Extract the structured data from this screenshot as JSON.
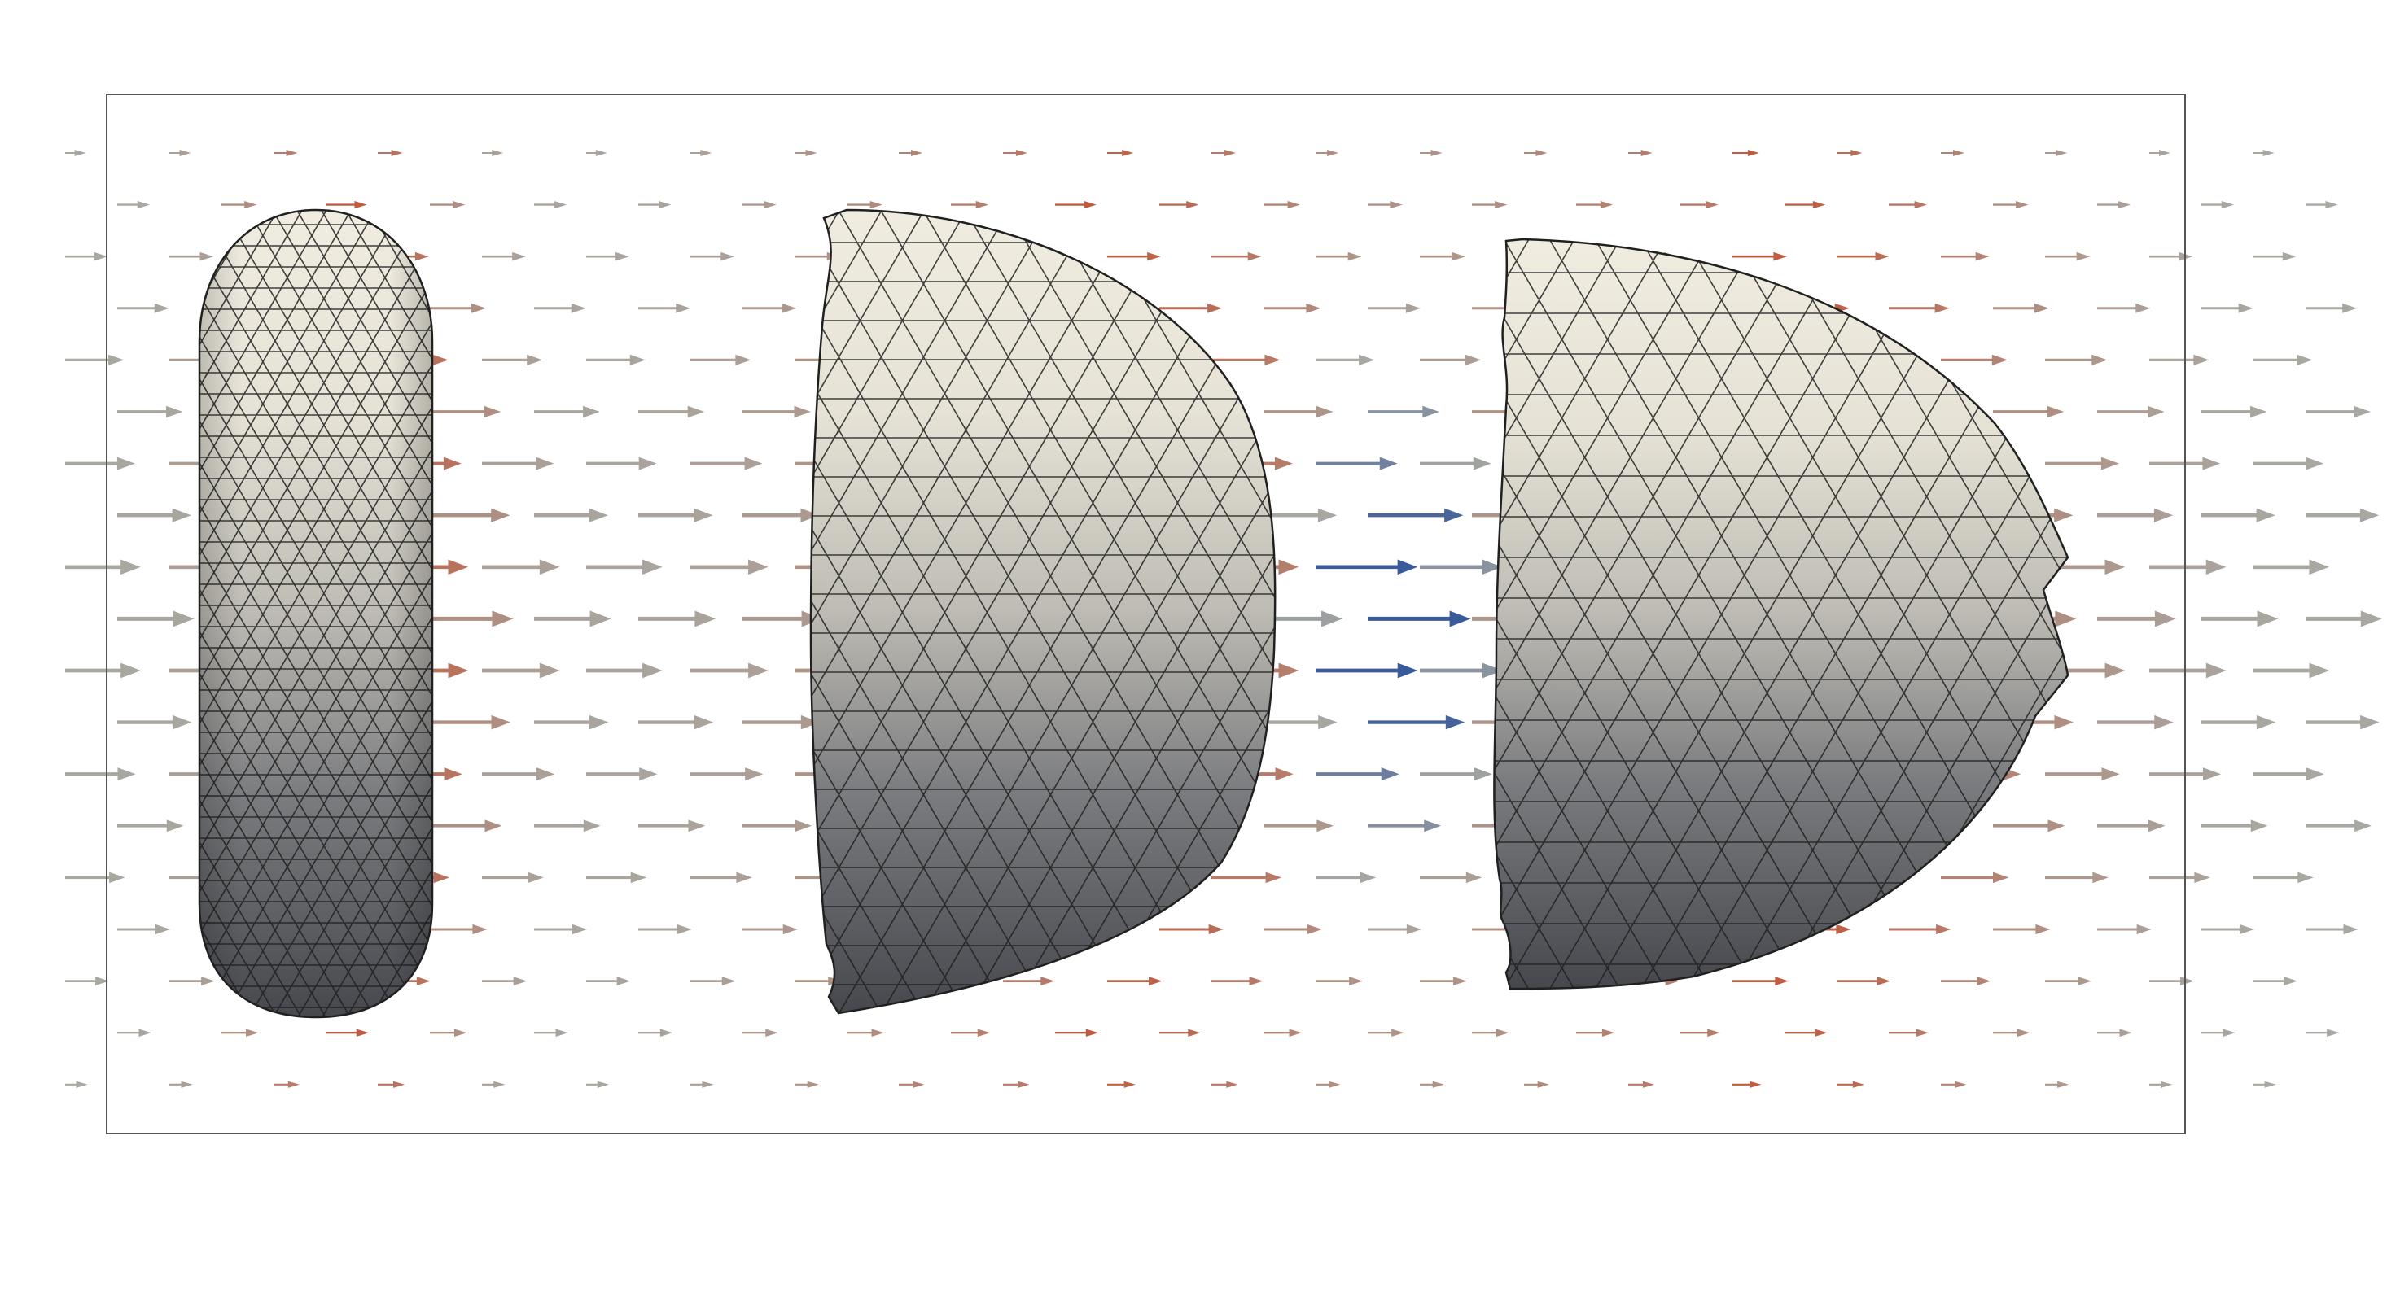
{
  "scene": {
    "background": "#ffffff",
    "frame_color": "#555555"
  },
  "vector_field": {
    "colormap": {
      "low": "#3b5a9a",
      "mid": "#a8a8a2",
      "high": "#c44a2a"
    }
  },
  "meshes": [
    {
      "id": "capsule",
      "label": "",
      "shading_light": "#f0ece0",
      "shading_dark": "#4a4c52",
      "edge_color": "#202020"
    },
    {
      "id": "deformed-cap-1",
      "label": "",
      "shading_light": "#f0ece0",
      "shading_dark": "#4a4c52",
      "edge_color": "#202020"
    },
    {
      "id": "deformed-cap-2",
      "label": "",
      "shading_light": "#f0ece0",
      "shading_dark": "#4a4c52",
      "edge_color": "#202020"
    }
  ]
}
